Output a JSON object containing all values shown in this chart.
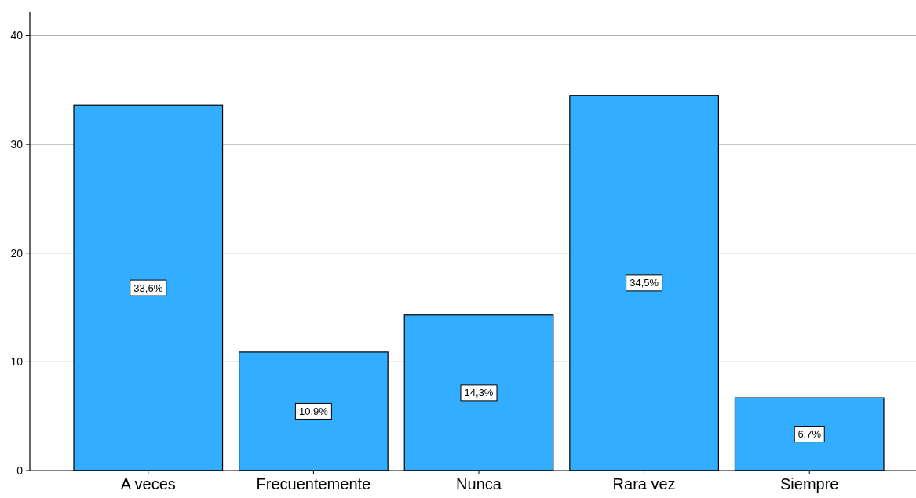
{
  "chart_data": {
    "type": "bar",
    "categories": [
      "A veces",
      "Frecuentemente",
      "Nunca",
      "Rara vez",
      "Siempre"
    ],
    "values": [
      33.6,
      10.9,
      14.3,
      34.5,
      6.7
    ],
    "value_labels": [
      "33,6%",
      "10,9%",
      "14,3%",
      "34,5%",
      "6,7%"
    ],
    "color": "#33adff",
    "ylim": [
      0,
      42.2
    ],
    "yticks": [
      0,
      10,
      20,
      30,
      40
    ],
    "grid": "y"
  }
}
